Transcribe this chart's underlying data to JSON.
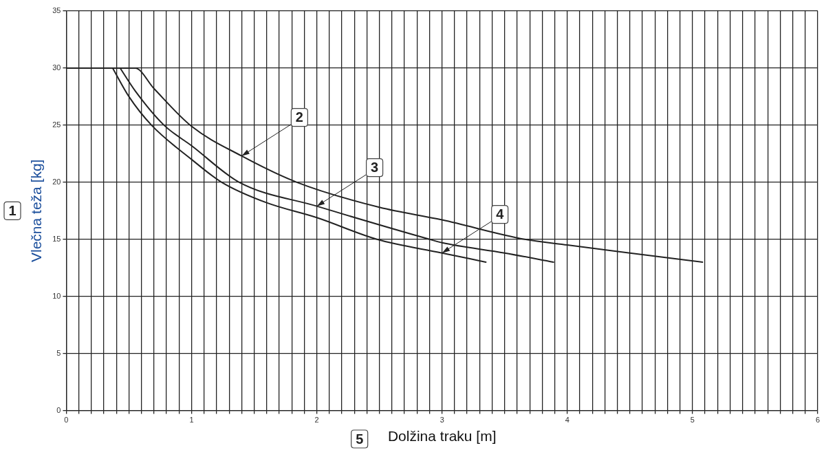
{
  "chart_data": {
    "type": "line",
    "xlabel": "Dolžina traku [m]",
    "ylabel": "Vlečna teža [kg]",
    "series": [
      {
        "color": "#222222",
        "x": [
          0,
          0.55,
          0.7,
          1.0,
          1.4,
          1.84,
          2.5,
          3.0,
          3.66,
          4.0,
          4.5,
          5.08
        ],
        "values": [
          30,
          30,
          28.2,
          24.9,
          22.3,
          20,
          17.8,
          16.7,
          15,
          14.5,
          13.8,
          13
        ]
      },
      {
        "color": "#222222",
        "x": [
          0.43,
          0.55,
          0.78,
          1.0,
          1.38,
          2.0,
          2.9,
          3.0,
          3.5,
          3.89
        ],
        "values": [
          30,
          28,
          25,
          23.2,
          20,
          17.9,
          15,
          14.7,
          13.8,
          13
        ]
      },
      {
        "color": "#222222",
        "x": [
          0.37,
          0.5,
          0.68,
          1.0,
          1.24,
          1.6,
          2.0,
          2.48,
          3.0,
          3.35
        ],
        "values": [
          30,
          27.5,
          25,
          22,
          20,
          18.2,
          16.9,
          15,
          13.8,
          13
        ]
      }
    ],
    "annotations": [
      "1",
      "5",
      {
        "text": "2",
        "x": 1.4,
        "y": 22.3
      },
      {
        "text": "3",
        "x": 2.0,
        "y": 17.9
      },
      {
        "text": "4",
        "x": 3.0,
        "y": 13.8
      }
    ],
    "xlim": [
      0,
      6
    ],
    "xticks": [
      0,
      {
        "value": 0.1,
        "label": null
      },
      {
        "value": 0.2,
        "label": null
      },
      {
        "value": 0.3,
        "label": null
      },
      {
        "value": 0.4,
        "label": null
      },
      {
        "value": 0.5,
        "label": null
      },
      {
        "value": 0.6,
        "label": null
      },
      {
        "value": 0.7,
        "label": null
      },
      {
        "value": 0.8,
        "label": null
      },
      {
        "value": 0.9,
        "label": null
      },
      1,
      {
        "value": 1.1,
        "label": null
      },
      {
        "value": 1.2,
        "label": null
      },
      {
        "value": 1.3,
        "label": null
      },
      {
        "value": 1.4,
        "label": null
      },
      {
        "value": 1.5,
        "label": null
      },
      {
        "value": 1.6,
        "label": null
      },
      {
        "value": 1.7,
        "label": null
      },
      {
        "value": 1.8,
        "label": null
      },
      {
        "value": 1.9,
        "label": null
      },
      2,
      {
        "value": 2.1,
        "label": null
      },
      {
        "value": 2.2,
        "label": null
      },
      {
        "value": 2.3,
        "label": null
      },
      {
        "value": 2.4,
        "label": null
      },
      {
        "value": 2.5,
        "label": null
      },
      {
        "value": 2.6,
        "label": null
      },
      {
        "value": 2.7,
        "label": null
      },
      {
        "value": 2.8,
        "label": null
      },
      {
        "value": 2.9,
        "label": null
      },
      3,
      {
        "value": 3.1,
        "label": null
      },
      {
        "value": 3.2,
        "label": null
      },
      {
        "value": 3.3,
        "label": null
      },
      {
        "value": 3.4,
        "label": null
      },
      {
        "value": 3.5,
        "label": null
      },
      {
        "value": 3.6,
        "label": null
      },
      {
        "value": 3.7,
        "label": null
      },
      {
        "value": 3.8,
        "label": null
      },
      {
        "value": 3.9,
        "label": null
      },
      4,
      {
        "value": 4.1,
        "label": null
      },
      {
        "value": 4.2,
        "label": null
      },
      {
        "value": 4.3,
        "label": null
      },
      {
        "value": 4.4,
        "label": null
      },
      {
        "value": 4.5,
        "label": null
      },
      {
        "value": 4.6,
        "label": null
      },
      {
        "value": 4.7,
        "label": null
      },
      {
        "value": 4.8,
        "label": null
      },
      {
        "value": 4.9,
        "label": null
      },
      5,
      {
        "value": 5.1,
        "label": null
      },
      {
        "value": 5.2,
        "label": null
      },
      {
        "value": 5.3,
        "label": null
      },
      {
        "value": 5.4,
        "label": null
      },
      {
        "value": 5.5,
        "label": null
      },
      {
        "value": 5.6,
        "label": null
      },
      {
        "value": 5.7,
        "label": null
      },
      {
        "value": 5.8,
        "label": null
      },
      {
        "value": 5.9,
        "label": null
      },
      6
    ],
    "ylim": [
      0,
      35
    ],
    "yticks": [
      0,
      5,
      10,
      15,
      20,
      25,
      30,
      35
    ],
    "grid": true,
    "legend": false,
    "marker": "none",
    "line_style": "solid"
  }
}
